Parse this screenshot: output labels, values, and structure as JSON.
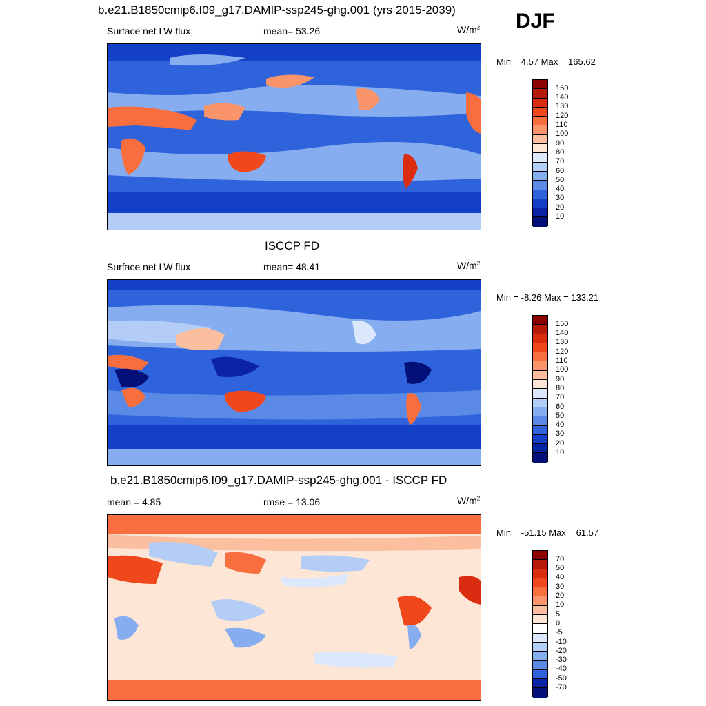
{
  "header": {
    "season": "DJF"
  },
  "panels": [
    {
      "id": "model",
      "title": "b.e21.B1850cmip6.f09_g17.DAMIP-ssp245-ghg.001 (yrs 2015-2039)",
      "left_label": "Surface net LW flux",
      "center_label": "mean=  53.26",
      "units": "W/m",
      "units_sup": "2",
      "minmax": "Min =   4.57 Max = 165.62",
      "colorbar_ticks": [
        "150",
        "140",
        "130",
        "120",
        "110",
        "100",
        "90",
        "80",
        "70",
        "60",
        "50",
        "40",
        "30",
        "20",
        "10"
      ],
      "colorbar_colors": [
        "#8b0000",
        "#b51a0b",
        "#d92c10",
        "#f0481c",
        "#f86e3e",
        "#f9946b",
        "#fbbf9f",
        "#fde6d6",
        "#dbe8fb",
        "#b3cdf6",
        "#86adef",
        "#5a8ae6",
        "#2f63dc",
        "#1440c8",
        "#0a22a4",
        "#04107a"
      ],
      "map_base_color": "#2f63dc"
    },
    {
      "id": "obs",
      "title": "ISCCP FD",
      "left_label": "Surface net LW flux",
      "center_label": "mean=  48.41",
      "units": "W/m",
      "units_sup": "2",
      "minmax": "Min =  -8.26 Max = 133.21",
      "colorbar_ticks": [
        "150",
        "140",
        "130",
        "120",
        "110",
        "100",
        "90",
        "80",
        "70",
        "60",
        "50",
        "40",
        "30",
        "20",
        "10"
      ],
      "colorbar_colors": [
        "#8b0000",
        "#b51a0b",
        "#d92c10",
        "#f0481c",
        "#f86e3e",
        "#f9946b",
        "#fbbf9f",
        "#fde6d6",
        "#dbe8fb",
        "#b3cdf6",
        "#86adef",
        "#5a8ae6",
        "#2f63dc",
        "#1440c8",
        "#0a22a4",
        "#04107a"
      ],
      "map_base_color": "#2f63dc"
    },
    {
      "id": "diff",
      "title": "b.e21.B1850cmip6.f09_g17.DAMIP-ssp245-ghg.001 - ISCCP FD",
      "left_label": "mean =   4.85",
      "center_label": "rmse =  13.06",
      "units": "W/m",
      "units_sup": "2",
      "minmax": "Min = -51.15 Max =  61.57",
      "colorbar_ticks": [
        "70",
        "50",
        "40",
        "30",
        "20",
        "10",
        "5",
        "0",
        "-5",
        "-10",
        "-20",
        "-30",
        "-40",
        "-50",
        "-70"
      ],
      "colorbar_colors": [
        "#8b0000",
        "#b51a0b",
        "#d92c10",
        "#f0481c",
        "#f86e3e",
        "#f9946b",
        "#fbbf9f",
        "#fde6d6",
        "#ffffff",
        "#dbe8fb",
        "#b3cdf6",
        "#86adef",
        "#5a8ae6",
        "#2f63dc",
        "#0a22a4",
        "#04107a"
      ],
      "map_base_color": "#fde6d6"
    }
  ]
}
